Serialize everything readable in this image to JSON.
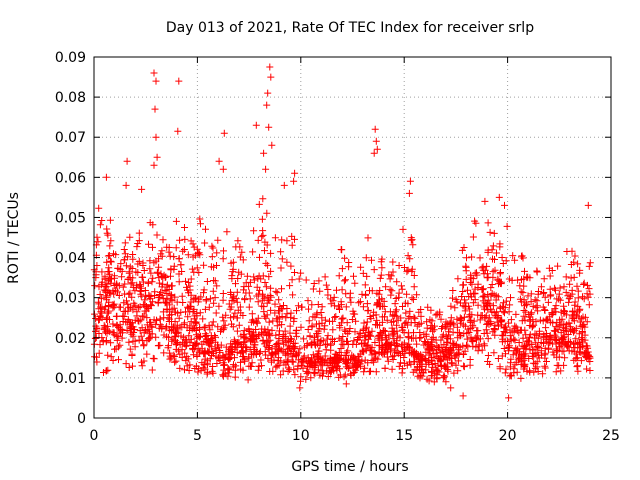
{
  "chart_data": {
    "type": "scatter",
    "title": "Day 013 of 2021, Rate Of TEC Index for receiver srlp",
    "xlabel": "GPS time / hours",
    "ylabel": "ROTI / TECUs",
    "xlim": [
      0,
      25
    ],
    "ylim": [
      0,
      0.09
    ],
    "xticks": [
      0,
      5,
      10,
      15,
      20,
      25
    ],
    "yticks": [
      0,
      0.01,
      0.02,
      0.03,
      0.04,
      0.05,
      0.06,
      0.07,
      0.08,
      0.09
    ],
    "ytick_labels": [
      "0",
      "0.01",
      "0.02",
      "0.03",
      "0.04",
      "0.05",
      "0.06",
      "0.07",
      "0.08",
      "0.09"
    ],
    "grid": true,
    "marker": "+",
    "colors": {
      "series": "#ff0000",
      "grid": "#a0a0a0",
      "frame": "#000000"
    },
    "series": [
      {
        "x": [
          0.0,
          0.25,
          0.5,
          0.75,
          1.0,
          1.25,
          1.5,
          1.75,
          2.0,
          2.25,
          2.5,
          2.75,
          3.0,
          3.25,
          3.5,
          3.75,
          4.0,
          4.25,
          4.5,
          4.75,
          5.0,
          5.25,
          5.5,
          5.75,
          6.0,
          6.25,
          6.5,
          6.75,
          7.0,
          7.25,
          7.5,
          7.75,
          8.0,
          8.25,
          8.5,
          8.75,
          9.0,
          9.25,
          9.5,
          9.75,
          10.0,
          10.25,
          10.5,
          10.75,
          11.0,
          11.25,
          11.5,
          11.75,
          12.0,
          12.25,
          12.5,
          12.75,
          13.0,
          13.25,
          13.5,
          13.75,
          14.0,
          14.25,
          14.5,
          14.75,
          15.0,
          15.25,
          15.5,
          15.75,
          16.0,
          16.25,
          16.5,
          16.75,
          17.0,
          17.25,
          17.5,
          17.75,
          18.0,
          18.25,
          18.5,
          18.75,
          19.0,
          19.25,
          19.5,
          19.75,
          20.0,
          20.25,
          20.5,
          20.75,
          21.0,
          21.25,
          21.5,
          21.75,
          22.0,
          22.25,
          22.5,
          22.75,
          23.0,
          23.25,
          23.5,
          23.75,
          24.0
        ],
        "y": [
          0.025,
          0.028,
          0.024,
          0.03,
          0.027,
          0.022,
          0.029,
          0.025,
          0.028,
          0.031,
          0.026,
          0.024,
          0.03,
          0.027,
          0.028,
          0.025,
          0.023,
          0.026,
          0.022,
          0.024,
          0.021,
          0.019,
          0.02,
          0.022,
          0.018,
          0.02,
          0.017,
          0.021,
          0.019,
          0.023,
          0.022,
          0.02,
          0.024,
          0.026,
          0.022,
          0.02,
          0.021,
          0.019,
          0.02,
          0.018,
          0.017,
          0.016,
          0.015,
          0.018,
          0.016,
          0.014,
          0.015,
          0.016,
          0.017,
          0.015,
          0.016,
          0.014,
          0.02,
          0.022,
          0.018,
          0.021,
          0.02,
          0.019,
          0.022,
          0.02,
          0.018,
          0.019,
          0.017,
          0.016,
          0.015,
          0.017,
          0.014,
          0.015,
          0.016,
          0.018,
          0.02,
          0.022,
          0.024,
          0.027,
          0.025,
          0.028,
          0.03,
          0.029,
          0.027,
          0.024,
          0.022,
          0.02,
          0.019,
          0.018,
          0.02,
          0.022,
          0.019,
          0.021,
          0.02,
          0.023,
          0.021,
          0.022,
          0.024,
          0.021,
          0.02,
          0.019,
          0.018
        ],
        "spread_low": [
          0.011,
          0.012,
          0.011,
          0.012,
          0.013,
          0.012,
          0.013,
          0.012,
          0.012,
          0.013,
          0.012,
          0.012,
          0.011,
          0.012,
          0.012,
          0.012,
          0.012,
          0.012,
          0.011,
          0.011,
          0.01,
          0.01,
          0.011,
          0.011,
          0.009,
          0.009,
          0.009,
          0.01,
          0.01,
          0.011,
          0.011,
          0.011,
          0.011,
          0.011,
          0.011,
          0.01,
          0.01,
          0.01,
          0.01,
          0.009,
          0.009,
          0.009,
          0.01,
          0.01,
          0.01,
          0.01,
          0.01,
          0.01,
          0.01,
          0.01,
          0.01,
          0.011,
          0.011,
          0.011,
          0.011,
          0.011,
          0.011,
          0.011,
          0.011,
          0.011,
          0.011,
          0.011,
          0.011,
          0.01,
          0.009,
          0.009,
          0.008,
          0.008,
          0.008,
          0.009,
          0.011,
          0.012,
          0.012,
          0.013,
          0.013,
          0.013,
          0.013,
          0.013,
          0.012,
          0.011,
          0.009,
          0.01,
          0.01,
          0.009,
          0.009,
          0.011,
          0.011,
          0.011,
          0.01,
          0.011,
          0.011,
          0.011,
          0.011,
          0.011,
          0.011,
          0.011,
          0.011
        ],
        "spread_high": [
          0.052,
          0.055,
          0.045,
          0.05,
          0.048,
          0.042,
          0.048,
          0.045,
          0.05,
          0.046,
          0.047,
          0.05,
          0.05,
          0.045,
          0.046,
          0.045,
          0.05,
          0.05,
          0.048,
          0.046,
          0.052,
          0.05,
          0.052,
          0.045,
          0.054,
          0.05,
          0.045,
          0.043,
          0.045,
          0.048,
          0.05,
          0.048,
          0.056,
          0.055,
          0.05,
          0.048,
          0.046,
          0.045,
          0.046,
          0.045,
          0.05,
          0.04,
          0.04,
          0.038,
          0.036,
          0.035,
          0.036,
          0.038,
          0.044,
          0.04,
          0.036,
          0.038,
          0.04,
          0.045,
          0.042,
          0.045,
          0.04,
          0.038,
          0.04,
          0.038,
          0.05,
          0.046,
          0.045,
          0.035,
          0.03,
          0.028,
          0.028,
          0.027,
          0.027,
          0.03,
          0.035,
          0.042,
          0.047,
          0.048,
          0.05,
          0.05,
          0.052,
          0.05,
          0.047,
          0.048,
          0.048,
          0.045,
          0.046,
          0.04,
          0.038,
          0.04,
          0.036,
          0.04,
          0.042,
          0.045,
          0.04,
          0.04,
          0.044,
          0.042,
          0.04,
          0.04,
          0.05
        ]
      }
    ],
    "outliers": [
      {
        "x": 2.9,
        "y": 0.086
      },
      {
        "x": 3.0,
        "y": 0.084
      },
      {
        "x": 2.95,
        "y": 0.077
      },
      {
        "x": 3.0,
        "y": 0.07
      },
      {
        "x": 3.05,
        "y": 0.065
      },
      {
        "x": 2.9,
        "y": 0.063
      },
      {
        "x": 4.1,
        "y": 0.084
      },
      {
        "x": 4.05,
        "y": 0.0715
      },
      {
        "x": 6.3,
        "y": 0.071
      },
      {
        "x": 6.05,
        "y": 0.064
      },
      {
        "x": 6.25,
        "y": 0.062
      },
      {
        "x": 7.85,
        "y": 0.073
      },
      {
        "x": 8.5,
        "y": 0.0875
      },
      {
        "x": 8.55,
        "y": 0.085
      },
      {
        "x": 8.4,
        "y": 0.081
      },
      {
        "x": 8.35,
        "y": 0.078
      },
      {
        "x": 8.45,
        "y": 0.0725
      },
      {
        "x": 8.6,
        "y": 0.068
      },
      {
        "x": 8.2,
        "y": 0.066
      },
      {
        "x": 8.3,
        "y": 0.062
      },
      {
        "x": 9.7,
        "y": 0.061
      },
      {
        "x": 9.65,
        "y": 0.059
      },
      {
        "x": 9.2,
        "y": 0.058
      },
      {
        "x": 13.6,
        "y": 0.072
      },
      {
        "x": 13.65,
        "y": 0.069
      },
      {
        "x": 13.7,
        "y": 0.067
      },
      {
        "x": 13.55,
        "y": 0.066
      },
      {
        "x": 15.3,
        "y": 0.059
      },
      {
        "x": 15.25,
        "y": 0.056
      },
      {
        "x": 1.6,
        "y": 0.064
      },
      {
        "x": 1.55,
        "y": 0.058
      },
      {
        "x": 0.6,
        "y": 0.06
      },
      {
        "x": 2.3,
        "y": 0.057
      },
      {
        "x": 19.6,
        "y": 0.055
      },
      {
        "x": 19.85,
        "y": 0.053
      },
      {
        "x": 18.9,
        "y": 0.054
      },
      {
        "x": 23.9,
        "y": 0.053
      },
      {
        "x": 7.45,
        "y": 0.0095
      },
      {
        "x": 17.25,
        "y": 0.0075
      },
      {
        "x": 20.05,
        "y": 0.005
      },
      {
        "x": 17.85,
        "y": 0.0055
      },
      {
        "x": 12.2,
        "y": 0.0085
      },
      {
        "x": 9.95,
        "y": 0.0075
      }
    ]
  }
}
